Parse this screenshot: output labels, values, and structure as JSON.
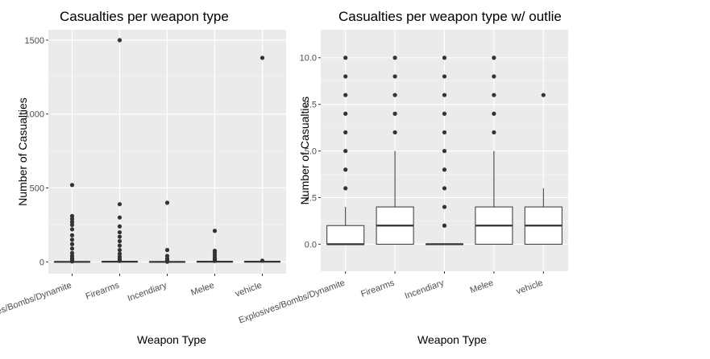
{
  "chart_data": [
    {
      "type": "boxplot",
      "title": "Casualties per weapon type",
      "xlabel": "Weapon Type",
      "ylabel": "Number of Casualties",
      "categories": [
        "Explosives/Bombs/Dynamite",
        "Firearms",
        "Incendiary",
        "Melee",
        "vehicle"
      ],
      "y_ticks": [
        0,
        500,
        1000,
        1500
      ],
      "y_tick_labels": [
        "0",
        "500",
        "1000",
        "1500"
      ],
      "ylim": [
        -80,
        1570
      ],
      "boxes": [
        {
          "q1": 0,
          "median": 0,
          "q3": 1,
          "whisker_low": 0,
          "whisker_high": 2,
          "outliers": [
            3,
            8,
            15,
            25,
            40,
            60,
            90,
            120,
            150,
            180,
            220,
            250,
            270,
            290,
            310,
            520
          ]
        },
        {
          "q1": 0,
          "median": 1,
          "q3": 2,
          "whisker_low": 0,
          "whisker_high": 5,
          "outliers": [
            6,
            10,
            20,
            35,
            55,
            80,
            110,
            140,
            170,
            200,
            240,
            300,
            390,
            1500
          ]
        },
        {
          "q1": 0,
          "median": 0,
          "q3": 0,
          "whisker_low": 0,
          "whisker_high": 0,
          "outliers": [
            1,
            2,
            3,
            5,
            10,
            20,
            40,
            80,
            400
          ]
        },
        {
          "q1": 0,
          "median": 1,
          "q3": 2,
          "whisker_low": 0,
          "whisker_high": 5,
          "outliers": [
            6,
            8,
            12,
            20,
            30,
            45,
            60,
            75,
            210
          ]
        },
        {
          "q1": 0,
          "median": 1,
          "q3": 2,
          "whisker_low": 0,
          "whisker_high": 3,
          "outliers": [
            8,
            1380
          ]
        }
      ],
      "grid": true,
      "legend": "none"
    },
    {
      "type": "boxplot",
      "title": "Casualties per weapon type w/ outlie",
      "xlabel": "Weapon Type",
      "ylabel": "Number of Casualties",
      "categories": [
        "Explosives/Bombs/Dynamite",
        "Firearms",
        "Incendiary",
        "Melee",
        "vehicle"
      ],
      "y_ticks": [
        0,
        2.5,
        5,
        7.5,
        10
      ],
      "y_tick_labels": [
        "0.0",
        "2.5",
        "5.0",
        "7.5",
        "10.0"
      ],
      "ylim": [
        -1.45,
        11.5
      ],
      "boxes": [
        {
          "q1": 0,
          "median": 0,
          "q3": 1,
          "whisker_low": 0,
          "whisker_high": 2,
          "outliers": [
            3,
            4,
            5,
            6,
            7,
            8,
            9,
            10
          ]
        },
        {
          "q1": 0,
          "median": 1,
          "q3": 2,
          "whisker_low": 0,
          "whisker_high": 5,
          "outliers": [
            6,
            7,
            8,
            9,
            10
          ]
        },
        {
          "q1": 0,
          "median": 0,
          "q3": 0,
          "whisker_low": 0,
          "whisker_high": 0,
          "outliers": [
            1,
            2,
            3,
            4,
            5,
            6,
            7,
            8,
            9,
            10
          ]
        },
        {
          "q1": 0,
          "median": 1,
          "q3": 2,
          "whisker_low": 0,
          "whisker_high": 5,
          "outliers": [
            6,
            7,
            8,
            9,
            10
          ]
        },
        {
          "q1": 0,
          "median": 1,
          "q3": 2,
          "whisker_low": 0,
          "whisker_high": 3,
          "outliers": [
            8
          ]
        }
      ],
      "grid": true,
      "legend": "none"
    }
  ],
  "colors": {
    "panel_background": "#ebebeb",
    "grid_major": "#ffffff",
    "points": "#333333",
    "box_fill": "#ffffff",
    "box_stroke": "#333333"
  }
}
